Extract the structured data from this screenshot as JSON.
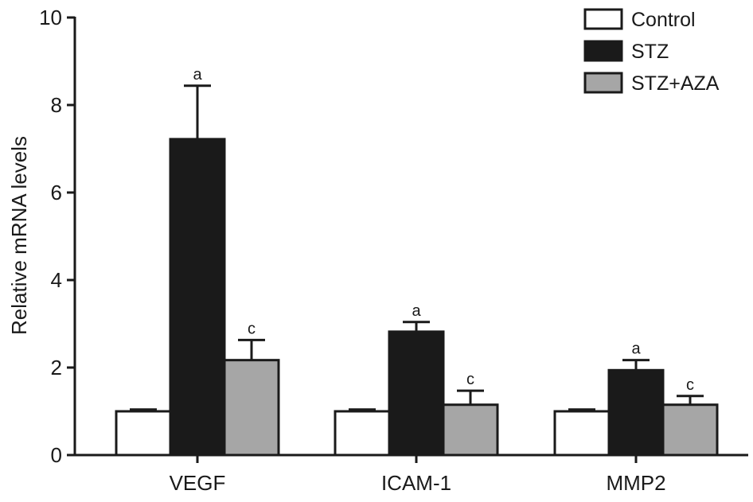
{
  "chart_data": {
    "type": "bar",
    "title": "",
    "xlabel": "",
    "ylabel": "Relative mRNA levels",
    "ylim": [
      0,
      10
    ],
    "yticks": [
      0,
      2,
      4,
      6,
      8,
      10
    ],
    "categories": [
      "VEGF",
      "ICAM-1",
      "MMP2"
    ],
    "series": [
      {
        "name": "Control",
        "values": [
          1.0,
          1.0,
          1.0
        ],
        "errors": [
          0.04,
          0.04,
          0.04
        ],
        "annotations": [
          "",
          "",
          ""
        ],
        "color": "#ffffff"
      },
      {
        "name": "STZ",
        "values": [
          7.22,
          2.82,
          1.94
        ],
        "errors": [
          1.22,
          0.22,
          0.23
        ],
        "annotations": [
          "a",
          "a",
          "a"
        ],
        "color": "#1a1a1a"
      },
      {
        "name": "STZ+AZA",
        "values": [
          2.17,
          1.15,
          1.15
        ],
        "errors": [
          0.46,
          0.32,
          0.2
        ],
        "annotations": [
          "c",
          "c",
          "c"
        ],
        "color": "#a6a6a6"
      }
    ],
    "legend_position": "top-right",
    "grid": false
  }
}
